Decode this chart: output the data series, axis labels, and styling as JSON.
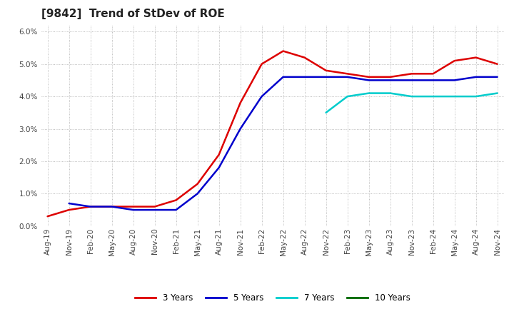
{
  "title": "[9842]  Trend of StDev of ROE",
  "ylim": [
    0.0,
    0.062
  ],
  "yticks": [
    0.0,
    0.01,
    0.02,
    0.03,
    0.04,
    0.05,
    0.06
  ],
  "x_labels": [
    "Aug-19",
    "Nov-19",
    "Feb-20",
    "May-20",
    "Aug-20",
    "Nov-20",
    "Feb-21",
    "May-21",
    "Aug-21",
    "Nov-21",
    "Feb-22",
    "May-22",
    "Aug-22",
    "Nov-22",
    "Feb-23",
    "May-23",
    "Aug-23",
    "Nov-23",
    "Feb-24",
    "May-24",
    "Aug-24",
    "Nov-24"
  ],
  "colors": {
    "3y": "#dd0000",
    "5y": "#0000cc",
    "7y": "#00cccc",
    "10y": "#006600"
  },
  "series_3y": [
    0.003,
    0.005,
    0.006,
    0.006,
    0.006,
    0.006,
    0.008,
    0.013,
    0.022,
    0.038,
    0.05,
    0.054,
    0.052,
    0.048,
    0.047,
    0.046,
    0.046,
    0.047,
    0.047,
    0.051,
    0.052,
    0.05
  ],
  "series_5y": [
    null,
    0.007,
    0.006,
    0.006,
    0.005,
    0.005,
    0.005,
    0.01,
    0.018,
    0.03,
    0.04,
    0.046,
    0.046,
    0.046,
    0.046,
    0.045,
    0.045,
    0.045,
    0.045,
    0.045,
    0.046,
    0.046
  ],
  "series_7y": [
    null,
    null,
    null,
    null,
    null,
    null,
    null,
    null,
    null,
    null,
    null,
    null,
    null,
    0.035,
    0.04,
    0.041,
    0.041,
    0.04,
    0.04,
    0.04,
    0.04,
    0.041
  ],
  "series_10y": [
    null,
    null,
    null,
    null,
    null,
    null,
    null,
    null,
    null,
    null,
    null,
    null,
    null,
    null,
    null,
    null,
    null,
    null,
    null,
    null,
    null,
    null
  ],
  "background_color": "#ffffff",
  "grid_color": "#aaaaaa",
  "title_fontsize": 11,
  "tick_fontsize": 7.5
}
